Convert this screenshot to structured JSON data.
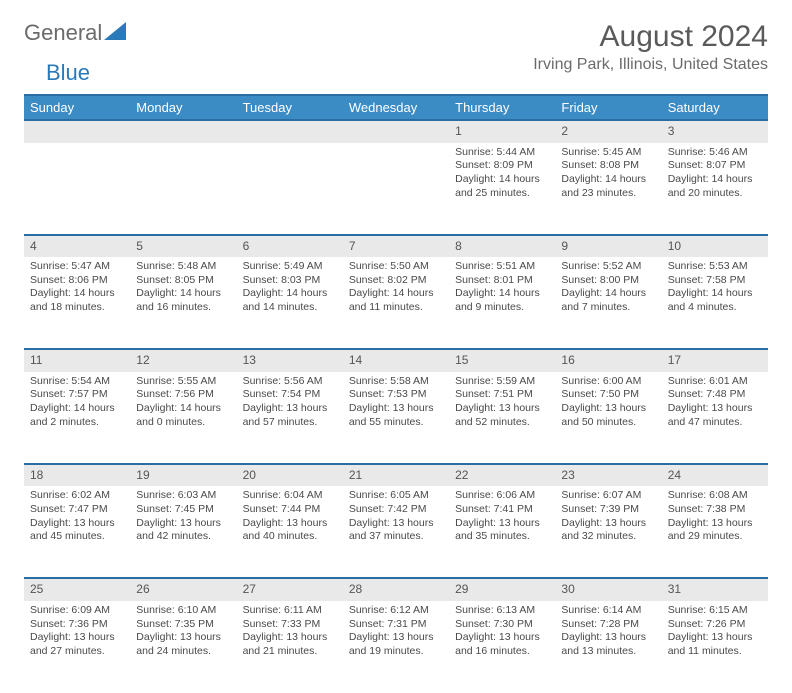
{
  "brand": {
    "part1": "General",
    "part2": "Blue"
  },
  "title": "August 2024",
  "location": "Irving Park, Illinois, United States",
  "colors": {
    "header_bg": "#3b8bc4",
    "header_border": "#2a6da3",
    "daynum_bg": "#e9e9e9",
    "text": "#4a4a4a",
    "brand_gray": "#6b6b6b",
    "brand_blue": "#2a7ab9"
  },
  "weekdays": [
    "Sunday",
    "Monday",
    "Tuesday",
    "Wednesday",
    "Thursday",
    "Friday",
    "Saturday"
  ],
  "weeks": [
    {
      "nums": [
        "",
        "",
        "",
        "",
        "1",
        "2",
        "3"
      ],
      "cells": [
        null,
        null,
        null,
        null,
        {
          "sunrise": "5:44 AM",
          "sunset": "8:09 PM",
          "daylight": "14 hours and 25 minutes."
        },
        {
          "sunrise": "5:45 AM",
          "sunset": "8:08 PM",
          "daylight": "14 hours and 23 minutes."
        },
        {
          "sunrise": "5:46 AM",
          "sunset": "8:07 PM",
          "daylight": "14 hours and 20 minutes."
        }
      ]
    },
    {
      "nums": [
        "4",
        "5",
        "6",
        "7",
        "8",
        "9",
        "10"
      ],
      "cells": [
        {
          "sunrise": "5:47 AM",
          "sunset": "8:06 PM",
          "daylight": "14 hours and 18 minutes."
        },
        {
          "sunrise": "5:48 AM",
          "sunset": "8:05 PM",
          "daylight": "14 hours and 16 minutes."
        },
        {
          "sunrise": "5:49 AM",
          "sunset": "8:03 PM",
          "daylight": "14 hours and 14 minutes."
        },
        {
          "sunrise": "5:50 AM",
          "sunset": "8:02 PM",
          "daylight": "14 hours and 11 minutes."
        },
        {
          "sunrise": "5:51 AM",
          "sunset": "8:01 PM",
          "daylight": "14 hours and 9 minutes."
        },
        {
          "sunrise": "5:52 AM",
          "sunset": "8:00 PM",
          "daylight": "14 hours and 7 minutes."
        },
        {
          "sunrise": "5:53 AM",
          "sunset": "7:58 PM",
          "daylight": "14 hours and 4 minutes."
        }
      ]
    },
    {
      "nums": [
        "11",
        "12",
        "13",
        "14",
        "15",
        "16",
        "17"
      ],
      "cells": [
        {
          "sunrise": "5:54 AM",
          "sunset": "7:57 PM",
          "daylight": "14 hours and 2 minutes."
        },
        {
          "sunrise": "5:55 AM",
          "sunset": "7:56 PM",
          "daylight": "14 hours and 0 minutes."
        },
        {
          "sunrise": "5:56 AM",
          "sunset": "7:54 PM",
          "daylight": "13 hours and 57 minutes."
        },
        {
          "sunrise": "5:58 AM",
          "sunset": "7:53 PM",
          "daylight": "13 hours and 55 minutes."
        },
        {
          "sunrise": "5:59 AM",
          "sunset": "7:51 PM",
          "daylight": "13 hours and 52 minutes."
        },
        {
          "sunrise": "6:00 AM",
          "sunset": "7:50 PM",
          "daylight": "13 hours and 50 minutes."
        },
        {
          "sunrise": "6:01 AM",
          "sunset": "7:48 PM",
          "daylight": "13 hours and 47 minutes."
        }
      ]
    },
    {
      "nums": [
        "18",
        "19",
        "20",
        "21",
        "22",
        "23",
        "24"
      ],
      "cells": [
        {
          "sunrise": "6:02 AM",
          "sunset": "7:47 PM",
          "daylight": "13 hours and 45 minutes."
        },
        {
          "sunrise": "6:03 AM",
          "sunset": "7:45 PM",
          "daylight": "13 hours and 42 minutes."
        },
        {
          "sunrise": "6:04 AM",
          "sunset": "7:44 PM",
          "daylight": "13 hours and 40 minutes."
        },
        {
          "sunrise": "6:05 AM",
          "sunset": "7:42 PM",
          "daylight": "13 hours and 37 minutes."
        },
        {
          "sunrise": "6:06 AM",
          "sunset": "7:41 PM",
          "daylight": "13 hours and 35 minutes."
        },
        {
          "sunrise": "6:07 AM",
          "sunset": "7:39 PM",
          "daylight": "13 hours and 32 minutes."
        },
        {
          "sunrise": "6:08 AM",
          "sunset": "7:38 PM",
          "daylight": "13 hours and 29 minutes."
        }
      ]
    },
    {
      "nums": [
        "25",
        "26",
        "27",
        "28",
        "29",
        "30",
        "31"
      ],
      "cells": [
        {
          "sunrise": "6:09 AM",
          "sunset": "7:36 PM",
          "daylight": "13 hours and 27 minutes."
        },
        {
          "sunrise": "6:10 AM",
          "sunset": "7:35 PM",
          "daylight": "13 hours and 24 minutes."
        },
        {
          "sunrise": "6:11 AM",
          "sunset": "7:33 PM",
          "daylight": "13 hours and 21 minutes."
        },
        {
          "sunrise": "6:12 AM",
          "sunset": "7:31 PM",
          "daylight": "13 hours and 19 minutes."
        },
        {
          "sunrise": "6:13 AM",
          "sunset": "7:30 PM",
          "daylight": "13 hours and 16 minutes."
        },
        {
          "sunrise": "6:14 AM",
          "sunset": "7:28 PM",
          "daylight": "13 hours and 13 minutes."
        },
        {
          "sunrise": "6:15 AM",
          "sunset": "7:26 PM",
          "daylight": "13 hours and 11 minutes."
        }
      ]
    }
  ],
  "labels": {
    "sunrise": "Sunrise: ",
    "sunset": "Sunset: ",
    "daylight": "Daylight: "
  }
}
